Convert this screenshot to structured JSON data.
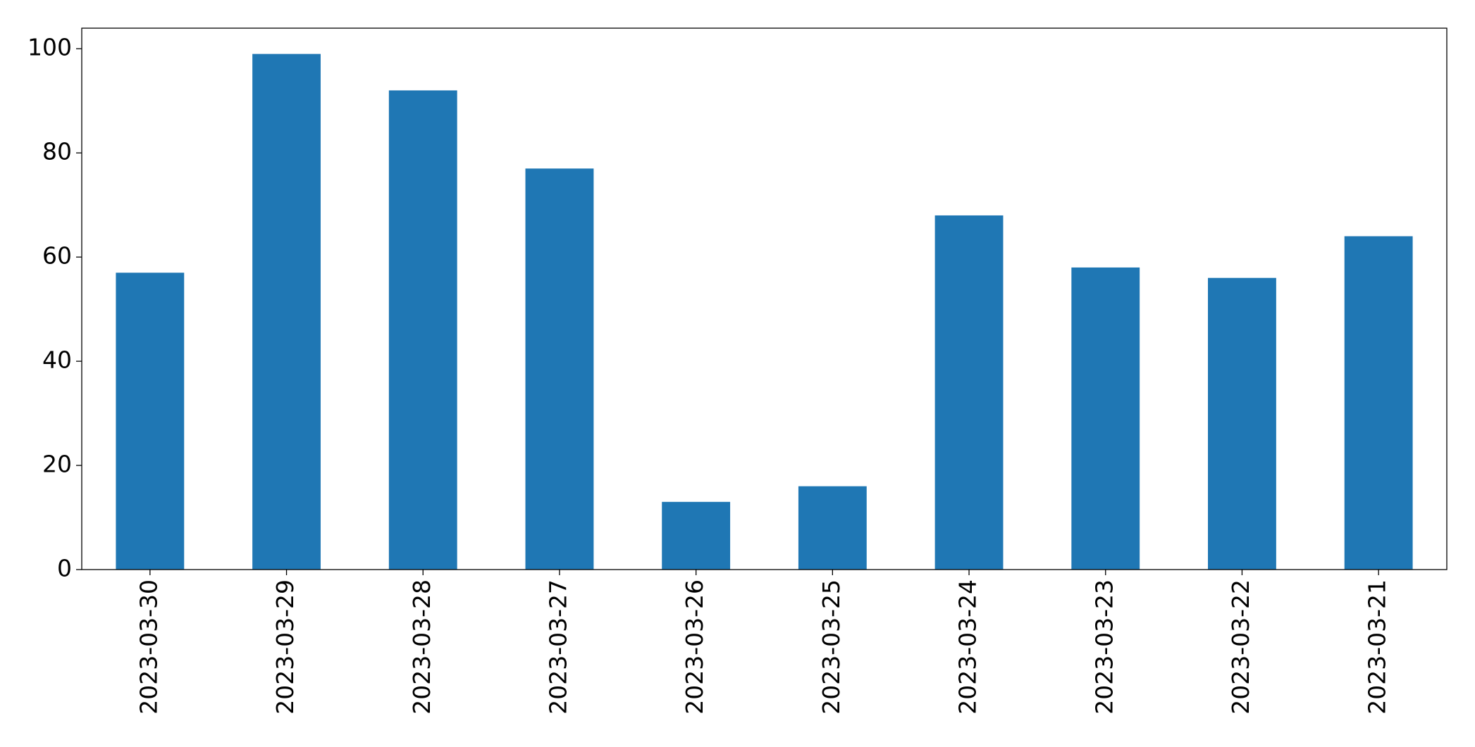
{
  "chart_data": {
    "type": "bar",
    "categories": [
      "2023-03-30",
      "2023-03-29",
      "2023-03-28",
      "2023-03-27",
      "2023-03-26",
      "2023-03-25",
      "2023-03-24",
      "2023-03-23",
      "2023-03-22",
      "2023-03-21"
    ],
    "values": [
      57,
      99,
      92,
      77,
      13,
      16,
      68,
      58,
      56,
      64
    ],
    "color": "#1f77b4",
    "ylim": [
      0,
      103.95
    ],
    "yticks": [
      0,
      20,
      40,
      60,
      80,
      100
    ],
    "grid": false
  }
}
